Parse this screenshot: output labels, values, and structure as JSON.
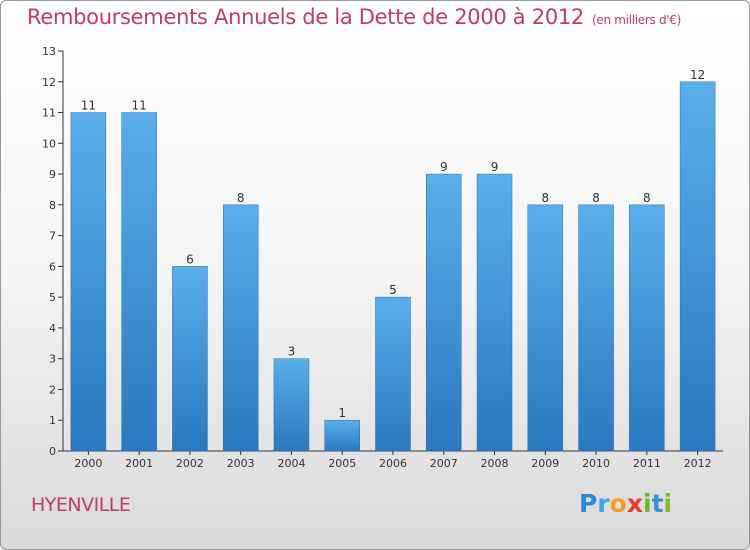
{
  "header": {
    "title": "Remboursements Annuels de la Dette de 2000 à 2012",
    "unit": "(en milliers d'€)"
  },
  "footer": {
    "commune": "HYENVILLE",
    "brand": "Proxiti"
  },
  "colors": {
    "bar": "#3d95d8",
    "bar_top": "#5aaeea",
    "title": "#c03a6a",
    "axis": "#333333"
  },
  "chart_data": {
    "type": "bar",
    "title": "Remboursements Annuels de la Dette de 2000 à 2012",
    "xlabel": "",
    "ylabel": "",
    "categories": [
      "2000",
      "2001",
      "2002",
      "2003",
      "2004",
      "2005",
      "2006",
      "2007",
      "2008",
      "2009",
      "2010",
      "2011",
      "2012"
    ],
    "values": [
      11,
      11,
      6,
      8,
      3,
      1,
      5,
      9,
      9,
      8,
      8,
      8,
      12
    ],
    "ylim": [
      0,
      13
    ],
    "yticks": [
      0,
      1,
      2,
      3,
      4,
      5,
      6,
      7,
      8,
      9,
      10,
      11,
      12,
      13
    ],
    "grid": false,
    "data_labels": true
  }
}
